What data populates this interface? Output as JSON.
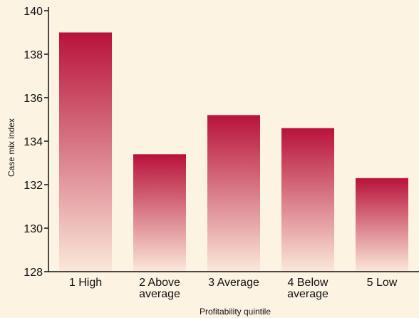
{
  "chart_data": {
    "type": "bar",
    "categories": [
      [
        "1 High"
      ],
      [
        "2 Above",
        "average"
      ],
      [
        "3 Average"
      ],
      [
        "4 Below",
        "average"
      ],
      [
        "5 Low"
      ]
    ],
    "values": [
      139.0,
      133.4,
      135.2,
      134.6,
      132.3
    ],
    "xlabel": "Profitability quintile",
    "ylabel": "Case mix index",
    "ylim": [
      128,
      140
    ],
    "yticks": [
      128,
      130,
      132,
      134,
      136,
      138,
      140
    ],
    "grid": false,
    "colors": {
      "background": "#fdf3e3",
      "bar_top": "#b8123a",
      "bar_bottom": "#fbe8da",
      "axis": "#111111"
    }
  }
}
